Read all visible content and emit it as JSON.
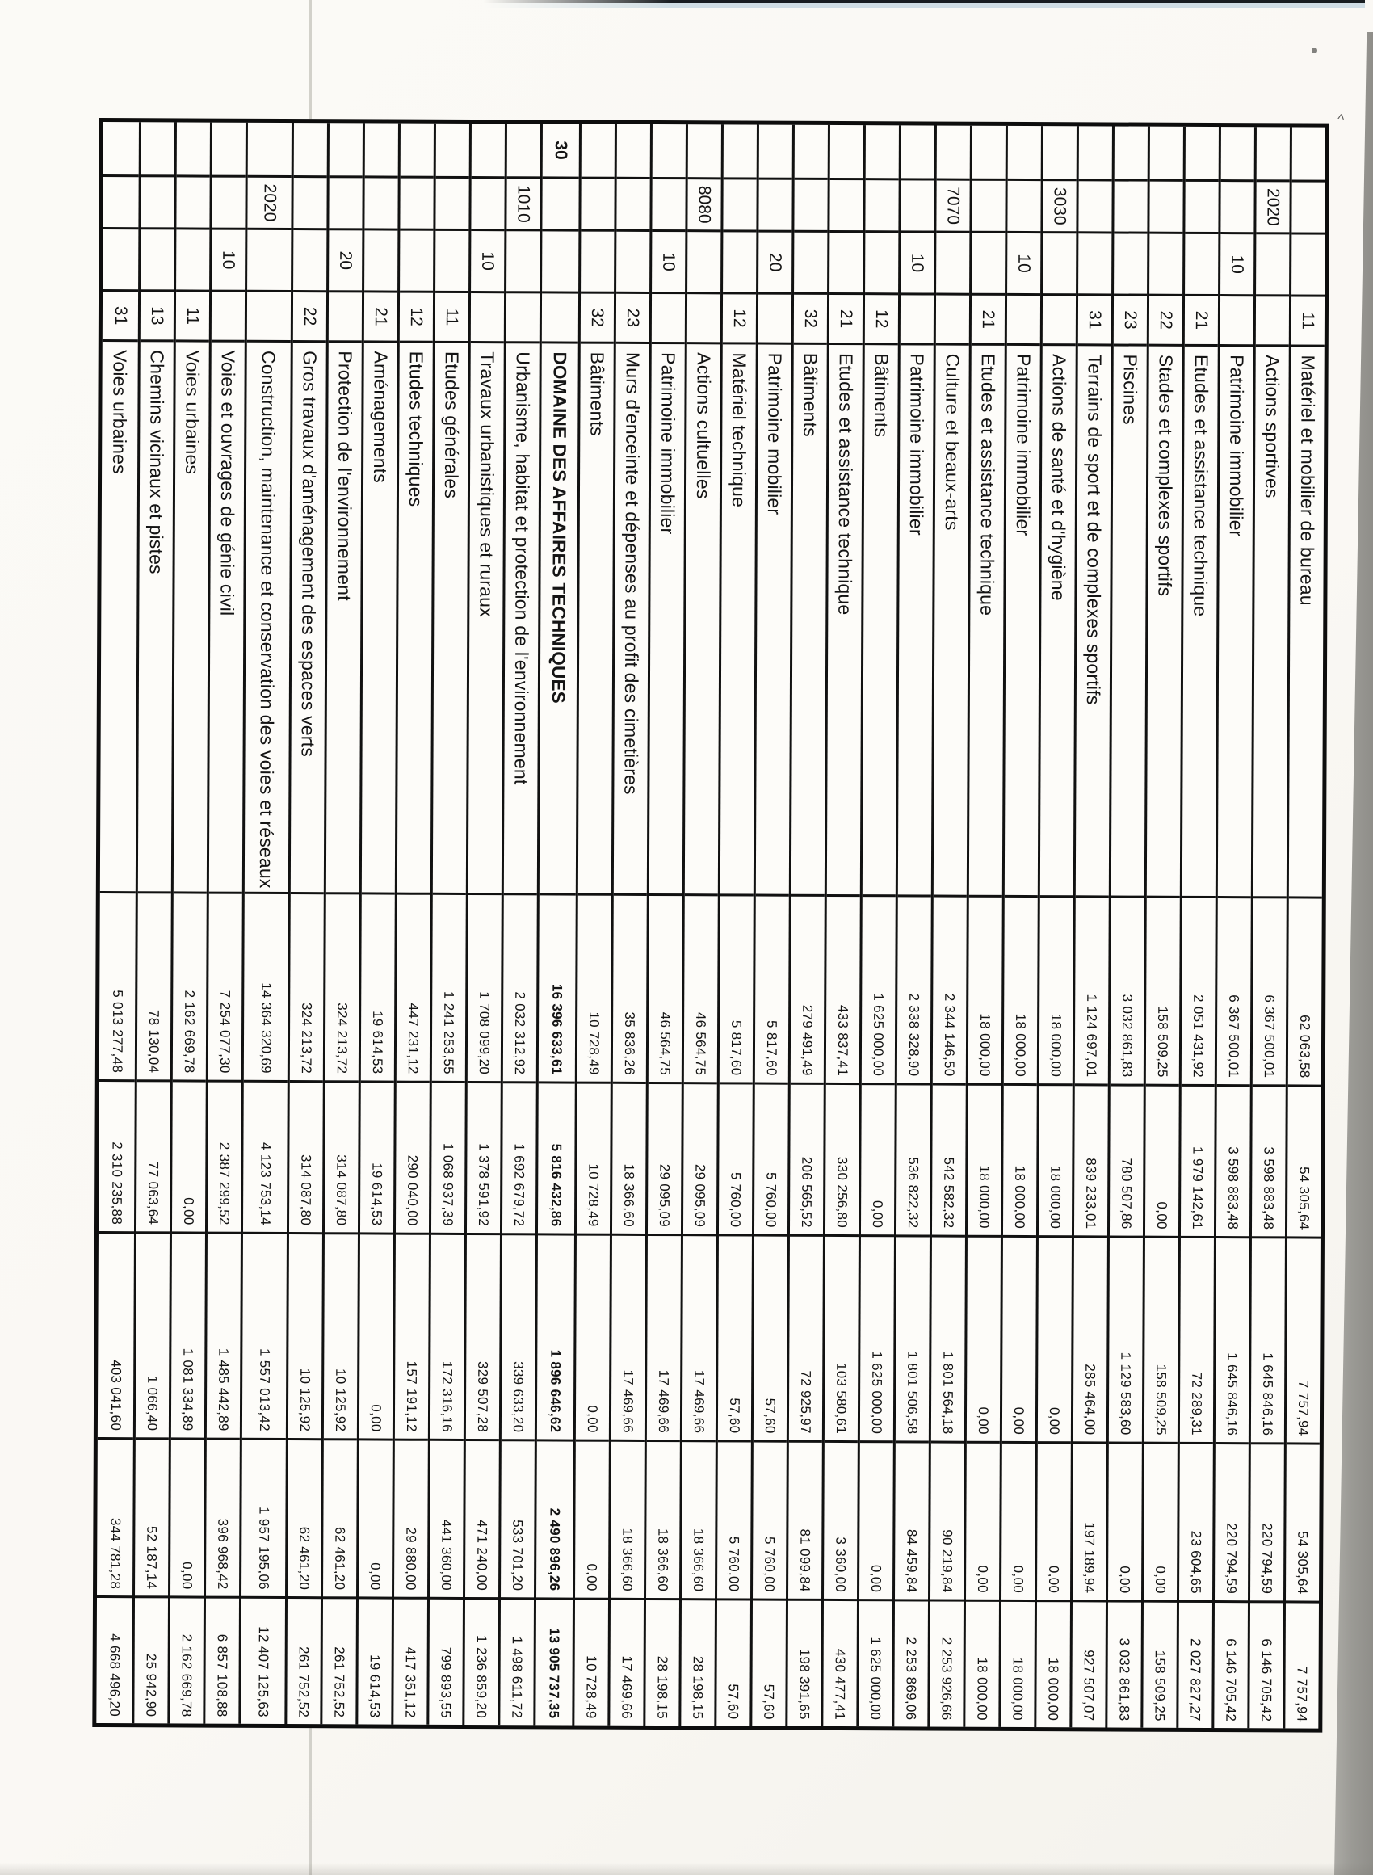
{
  "page": {
    "background": "#faf8f4",
    "ink": "#141414",
    "scanner_gray": "#9b9a95",
    "fold_line_color": "#c8c7bf",
    "marks": {
      "caret": "^"
    }
  },
  "table": {
    "rows": [
      {
        "domain": "",
        "chapter": "",
        "sub": "",
        "article": "11",
        "label": "Matériel et mobilier de bureau",
        "bold": false,
        "tall": false,
        "amounts": [
          "62 063,58",
          "54 305,64",
          "7 757,94",
          "54 305,64",
          "7 757,94"
        ]
      },
      {
        "domain": "",
        "chapter": "2020",
        "sub": "",
        "article": "",
        "label": "Actions sportives",
        "bold": false,
        "tall": false,
        "amounts": [
          "6 367 500,01",
          "3 598 883,48",
          "1 645 846,16",
          "220 794,59",
          "6 146 705,42"
        ]
      },
      {
        "domain": "",
        "chapter": "",
        "sub": "10",
        "article": "",
        "label": "Patrimoine immobilier",
        "bold": false,
        "tall": false,
        "amounts": [
          "6 367 500,01",
          "3 598 883,48",
          "1 645 846,16",
          "220 794,59",
          "6 146 705,42"
        ]
      },
      {
        "domain": "",
        "chapter": "",
        "sub": "",
        "article": "21",
        "label": "Etudes et assistance technique",
        "bold": false,
        "tall": false,
        "amounts": [
          "2 051 431,92",
          "1 979 142,61",
          "72 289,31",
          "23 604,65",
          "2 027 827,27"
        ]
      },
      {
        "domain": "",
        "chapter": "",
        "sub": "",
        "article": "22",
        "label": "Stades et complexes sportifs",
        "bold": false,
        "tall": false,
        "amounts": [
          "158 509,25",
          "0,00",
          "158 509,25",
          "0,00",
          "158 509,25"
        ]
      },
      {
        "domain": "",
        "chapter": "",
        "sub": "",
        "article": "23",
        "label": "Piscines",
        "bold": false,
        "tall": false,
        "amounts": [
          "3 032 861,83",
          "780 507,86",
          "1 129 583,60",
          "0,00",
          "3 032 861,83"
        ]
      },
      {
        "domain": "",
        "chapter": "",
        "sub": "",
        "article": "31",
        "label": "Terrains de sport et de complexes sportifs",
        "bold": false,
        "tall": false,
        "amounts": [
          "1 124 697,01",
          "839 233,01",
          "285 464,00",
          "197 189,94",
          "927 507,07"
        ]
      },
      {
        "domain": "",
        "chapter": "3030",
        "sub": "",
        "article": "",
        "label": "Actions de santé et d'hygiène",
        "bold": false,
        "tall": false,
        "amounts": [
          "18 000,00",
          "18 000,00",
          "0,00",
          "0,00",
          "18 000,00"
        ]
      },
      {
        "domain": "",
        "chapter": "",
        "sub": "10",
        "article": "",
        "label": "Patrimoine immobilier",
        "bold": false,
        "tall": false,
        "amounts": [
          "18 000,00",
          "18 000,00",
          "0,00",
          "0,00",
          "18 000,00"
        ]
      },
      {
        "domain": "",
        "chapter": "",
        "sub": "",
        "article": "21",
        "label": "Etudes et assistance technique",
        "bold": false,
        "tall": false,
        "amounts": [
          "18 000,00",
          "18 000,00",
          "0,00",
          "0,00",
          "18 000,00"
        ]
      },
      {
        "domain": "",
        "chapter": "7070",
        "sub": "",
        "article": "",
        "label": "Culture et beaux-arts",
        "bold": false,
        "tall": false,
        "amounts": [
          "2 344 146,50",
          "542 582,32",
          "1 801 564,18",
          "90 219,84",
          "2 253 926,66"
        ]
      },
      {
        "domain": "",
        "chapter": "",
        "sub": "10",
        "article": "",
        "label": "Patrimoine immobilier",
        "bold": false,
        "tall": false,
        "amounts": [
          "2 338 328,90",
          "536 822,32",
          "1 801 506,58",
          "84 459,84",
          "2 253 869,06"
        ]
      },
      {
        "domain": "",
        "chapter": "",
        "sub": "",
        "article": "12",
        "label": "Bâtiments",
        "bold": false,
        "tall": false,
        "amounts": [
          "1 625 000,00",
          "0,00",
          "1 625 000,00",
          "0,00",
          "1 625 000,00"
        ]
      },
      {
        "domain": "",
        "chapter": "",
        "sub": "",
        "article": "21",
        "label": "Etudes et assistance technique",
        "bold": false,
        "tall": false,
        "amounts": [
          "433 837,41",
          "330 256,80",
          "103 580,61",
          "3 360,00",
          "430 477,41"
        ]
      },
      {
        "domain": "",
        "chapter": "",
        "sub": "",
        "article": "32",
        "label": "Bâtiments",
        "bold": false,
        "tall": false,
        "amounts": [
          "279 491,49",
          "206 565,52",
          "72 925,97",
          "81 099,84",
          "198 391,65"
        ]
      },
      {
        "domain": "",
        "chapter": "",
        "sub": "20",
        "article": "",
        "label": "Patrimoine mobilier",
        "bold": false,
        "tall": false,
        "amounts": [
          "5 817,60",
          "5 760,00",
          "57,60",
          "5 760,00",
          "57,60"
        ]
      },
      {
        "domain": "",
        "chapter": "",
        "sub": "",
        "article": "12",
        "label": "Matériel technique",
        "bold": false,
        "tall": false,
        "amounts": [
          "5 817,60",
          "5 760,00",
          "57,60",
          "5 760,00",
          "57,60"
        ]
      },
      {
        "domain": "",
        "chapter": "8080",
        "sub": "",
        "article": "",
        "label": "Actions cultuelles",
        "bold": false,
        "tall": false,
        "amounts": [
          "46 564,75",
          "29 095,09",
          "17 469,66",
          "18 366,60",
          "28 198,15"
        ]
      },
      {
        "domain": "",
        "chapter": "",
        "sub": "10",
        "article": "",
        "label": "Patrimoine immobilier",
        "bold": false,
        "tall": false,
        "amounts": [
          "46 564,75",
          "29 095,09",
          "17 469,66",
          "18 366,60",
          "28 198,15"
        ]
      },
      {
        "domain": "",
        "chapter": "",
        "sub": "",
        "article": "23",
        "label": "Murs d'enceinte et dépenses au profit des cimetières",
        "bold": false,
        "tall": false,
        "amounts": [
          "35 836,26",
          "18 366,60",
          "17 469,66",
          "18 366,60",
          "17 469,66"
        ]
      },
      {
        "domain": "",
        "chapter": "",
        "sub": "",
        "article": "32",
        "label": "Bâtiments",
        "bold": false,
        "tall": false,
        "amounts": [
          "10 728,49",
          "10 728,49",
          "0,00",
          "0,00",
          "10 728,49"
        ]
      },
      {
        "domain": "30",
        "chapter": "",
        "sub": "",
        "article": "",
        "label": "DOMAINE DES AFFAIRES TECHNIQUES",
        "bold": true,
        "tall": false,
        "amounts": [
          "16 396 633,61",
          "5 816 432,86",
          "1 896 646,62",
          "2 490 896,26",
          "13 905 737,35"
        ]
      },
      {
        "domain": "",
        "chapter": "1010",
        "sub": "",
        "article": "",
        "label": "Urbanisme, habitat et protection de l'environnement",
        "bold": false,
        "tall": false,
        "amounts": [
          "2 032 312,92",
          "1 692 679,72",
          "339 633,20",
          "533 701,20",
          "1 498 611,72"
        ]
      },
      {
        "domain": "",
        "chapter": "",
        "sub": "10",
        "article": "",
        "label": "Travaux urbanistiques et ruraux",
        "bold": false,
        "tall": false,
        "amounts": [
          "1 708 099,20",
          "1 378 591,92",
          "329 507,28",
          "471 240,00",
          "1 236 859,20"
        ]
      },
      {
        "domain": "",
        "chapter": "",
        "sub": "",
        "article": "11",
        "label": "Etudes générales",
        "bold": false,
        "tall": false,
        "amounts": [
          "1 241 253,55",
          "1 068 937,39",
          "172 316,16",
          "441 360,00",
          "799 893,55"
        ]
      },
      {
        "domain": "",
        "chapter": "",
        "sub": "",
        "article": "12",
        "label": "Etudes techniques",
        "bold": false,
        "tall": false,
        "amounts": [
          "447 231,12",
          "290 040,00",
          "157 191,12",
          "29 880,00",
          "417 351,12"
        ]
      },
      {
        "domain": "",
        "chapter": "",
        "sub": "",
        "article": "21",
        "label": "Aménagements",
        "bold": false,
        "tall": false,
        "amounts": [
          "19 614,53",
          "19 614,53",
          "0,00",
          "0,00",
          "19 614,53"
        ]
      },
      {
        "domain": "",
        "chapter": "",
        "sub": "20",
        "article": "",
        "label": "Protection de l'environnement",
        "bold": false,
        "tall": false,
        "amounts": [
          "324 213,72",
          "314 087,80",
          "10 125,92",
          "62 461,20",
          "261 752,52"
        ]
      },
      {
        "domain": "",
        "chapter": "",
        "sub": "",
        "article": "22",
        "label": "Gros travaux d'aménagement des espaces verts",
        "bold": false,
        "tall": false,
        "amounts": [
          "324 213,72",
          "314 087,80",
          "10 125,92",
          "62 461,20",
          "261 752,52"
        ]
      },
      {
        "domain": "",
        "chapter": "2020",
        "sub": "",
        "article": "",
        "label": "Construction, maintenance et conservation des voies et réseaux",
        "bold": false,
        "tall": true,
        "amounts": [
          "14 364 320,69",
          "4 123 753,14",
          "1 557 013,42",
          "1 957 195,06",
          "12 407 125,63"
        ]
      },
      {
        "domain": "",
        "chapter": "",
        "sub": "10",
        "article": "",
        "label": "Voies et ouvrages de génie civil",
        "bold": false,
        "tall": false,
        "amounts": [
          "7 254 077,30",
          "2 387 299,52",
          "1 485 442,89",
          "396 968,42",
          "6 857 108,88"
        ]
      },
      {
        "domain": "",
        "chapter": "",
        "sub": "",
        "article": "11",
        "label": "Voies urbaines",
        "bold": false,
        "tall": false,
        "amounts": [
          "2 162 669,78",
          "0,00",
          "1 081 334,89",
          "0,00",
          "2 162 669,78"
        ]
      },
      {
        "domain": "",
        "chapter": "",
        "sub": "",
        "article": "13",
        "label": "Chemins vicinaux et pistes",
        "bold": false,
        "tall": false,
        "amounts": [
          "78 130,04",
          "77 063,64",
          "1 066,40",
          "52 187,14",
          "25 942,90"
        ]
      },
      {
        "domain": "",
        "chapter": "",
        "sub": "",
        "article": "31",
        "label": "Voies urbaines",
        "bold": false,
        "tall": false,
        "amounts": [
          "5 013 277,48",
          "2 310 235,88",
          "403 041,60",
          "344 781,28",
          "4 668 496,20"
        ]
      }
    ]
  }
}
